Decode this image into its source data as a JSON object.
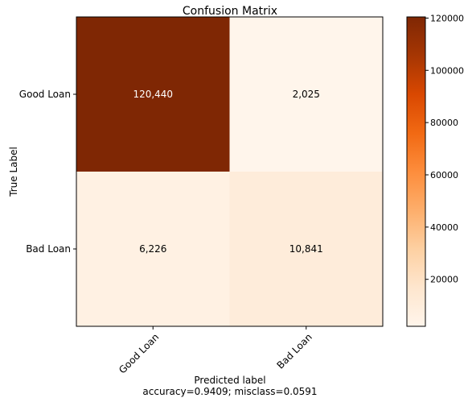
{
  "chart_data": {
    "type": "heatmap",
    "title": "Confusion Matrix",
    "xlabel": "Predicted label",
    "xlabel_sub": "accuracy=0.9409; misclass=0.0591",
    "ylabel": "True Label",
    "x_categories": [
      "Good Loan",
      "Bad Loan"
    ],
    "y_categories": [
      "Good Loan",
      "Bad Loan"
    ],
    "values": [
      [
        120440,
        2025
      ],
      [
        6226,
        10841
      ]
    ],
    "cell_labels": [
      [
        "120,440",
        "2,025"
      ],
      [
        "6,226",
        "10,841"
      ]
    ],
    "colormap": "Oranges",
    "colormap_colors": [
      "#fff5eb",
      "#fee6ce",
      "#fdd0a2",
      "#fdae6b",
      "#fd8d3c",
      "#f16913",
      "#d94801",
      "#a63603",
      "#7f2704"
    ],
    "colorbar": {
      "vmin": 2025,
      "vmax": 120440,
      "ticks": [
        20000,
        40000,
        60000,
        80000,
        100000,
        120000
      ],
      "tick_labels": [
        "20000",
        "40000",
        "60000",
        "80000",
        "100000",
        "120000"
      ]
    }
  }
}
